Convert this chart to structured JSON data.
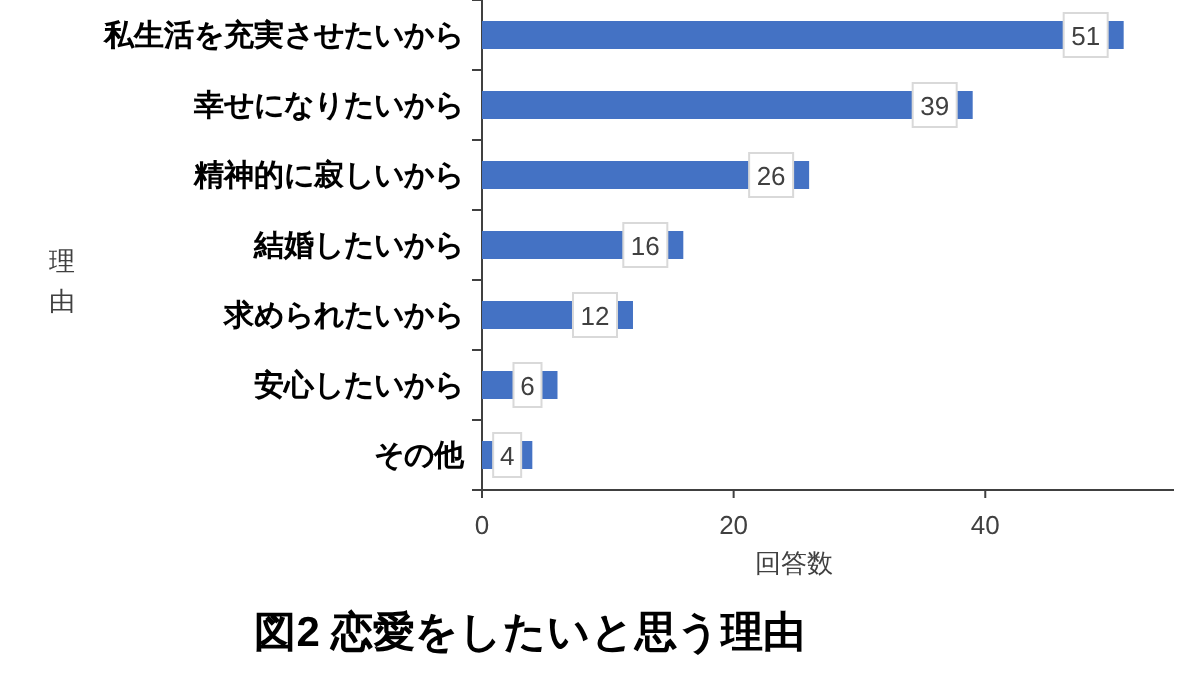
{
  "chart_data": {
    "type": "bar",
    "orientation": "horizontal",
    "title": "図2 恋愛をしたいと思う理由",
    "xlabel": "回答数",
    "ylabel": "理由",
    "categories": [
      "私生活を充実させたいから",
      "幸せになりたいから",
      "精神的に寂しいから",
      "結婚したいから",
      "求められたいから",
      "安心したいから",
      "その他"
    ],
    "values": [
      51,
      39,
      26,
      16,
      12,
      6,
      4
    ],
    "color": "#4472c4",
    "data_labels": true,
    "xlim": [
      0,
      55
    ],
    "xticks": [
      0,
      20,
      40
    ],
    "grid": false
  }
}
